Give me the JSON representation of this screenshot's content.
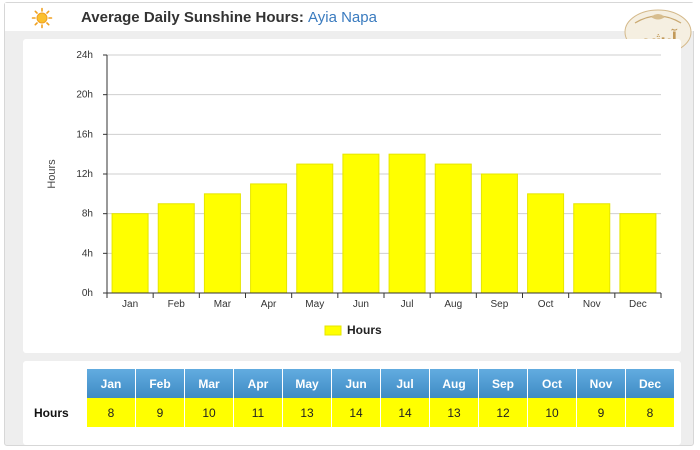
{
  "header": {
    "title": "Average Daily Sunshine Hours:",
    "place": "Ayia Napa",
    "logo_text": "آیشم"
  },
  "colors": {
    "bar": "#ffff00",
    "bar_stroke": "#e6e600",
    "table_header": "#4d9bcf",
    "place": "#3a7bbf"
  },
  "chart_data": {
    "type": "bar",
    "categories": [
      "Jan",
      "Feb",
      "Mar",
      "Apr",
      "May",
      "Jun",
      "Jul",
      "Aug",
      "Sep",
      "Oct",
      "Nov",
      "Dec"
    ],
    "series": [
      {
        "name": "Hours",
        "values": [
          8,
          9,
          10,
          11,
          13,
          14,
          14,
          13,
          12,
          10,
          9,
          8
        ]
      }
    ],
    "title": "Average Daily Sunshine Hours: Ayia Napa",
    "xlabel": "",
    "ylabel": "Hours",
    "ylim": [
      0,
      24
    ],
    "yticks": [
      "0h",
      "4h",
      "8h",
      "12h",
      "16h",
      "20h",
      "24h"
    ],
    "grid": true,
    "legend": "bottom-center"
  },
  "table": {
    "row_label": "Hours",
    "months": [
      "Jan",
      "Feb",
      "Mar",
      "Apr",
      "May",
      "Jun",
      "Jul",
      "Aug",
      "Sep",
      "Oct",
      "Nov",
      "Dec"
    ],
    "values": [
      "8",
      "9",
      "10",
      "11",
      "13",
      "14",
      "14",
      "13",
      "12",
      "10",
      "9",
      "8"
    ]
  }
}
